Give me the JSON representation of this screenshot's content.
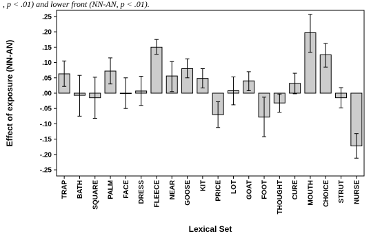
{
  "top_fragment": ", p < .01) and lower front (NN-AN, p < .01).",
  "colors": {
    "bar_fill": "#cccccc",
    "bar_stroke": "#000000",
    "frame": "#000000",
    "error_bar": "#000000"
  },
  "chart_data": {
    "type": "bar",
    "title": "",
    "xlabel": "Lexical Set",
    "ylabel": "Effect of exposure (NN-AN)",
    "ylim": [
      -0.27,
      0.27
    ],
    "yticks": [
      0.25,
      0.2,
      0.15,
      0.1,
      0.05,
      0.0,
      -0.05,
      -0.1,
      -0.15,
      -0.2,
      -0.25
    ],
    "ytick_labels": [
      ".25",
      ".20",
      ".15",
      ".10",
      ".05",
      ".00",
      "-.05",
      "-.10",
      "-.15",
      "-.20",
      "-.25"
    ],
    "grid": false,
    "categories": [
      "TRAP",
      "BATH",
      "SQUARE",
      "PALM",
      "FACE",
      "DRESS",
      "FLEECE",
      "NEAR",
      "GOOSE",
      "KIT",
      "PRICE",
      "LOT",
      "GOAT",
      "FOOT",
      "THOUGHT",
      "CURE",
      "MOUTH",
      "CHOICE",
      "STRUT",
      "NURSE"
    ],
    "values": [
      0.063,
      -0.007,
      -0.015,
      0.072,
      0.0,
      0.007,
      0.15,
      0.056,
      0.08,
      0.048,
      -0.07,
      0.008,
      0.04,
      -0.078,
      -0.032,
      0.032,
      0.197,
      0.125,
      -0.015,
      -0.172
    ],
    "error_low": [
      0.022,
      -0.075,
      -0.082,
      0.03,
      -0.05,
      -0.04,
      0.127,
      0.005,
      0.05,
      0.017,
      -0.112,
      -0.038,
      0.008,
      -0.142,
      -0.062,
      -0.002,
      0.133,
      0.085,
      -0.048,
      -0.212
    ],
    "error_high": [
      0.105,
      0.058,
      0.052,
      0.115,
      0.05,
      0.055,
      0.175,
      0.103,
      0.112,
      0.08,
      -0.028,
      0.053,
      0.07,
      -0.013,
      -0.003,
      0.065,
      0.257,
      0.162,
      0.018,
      -0.132
    ]
  }
}
